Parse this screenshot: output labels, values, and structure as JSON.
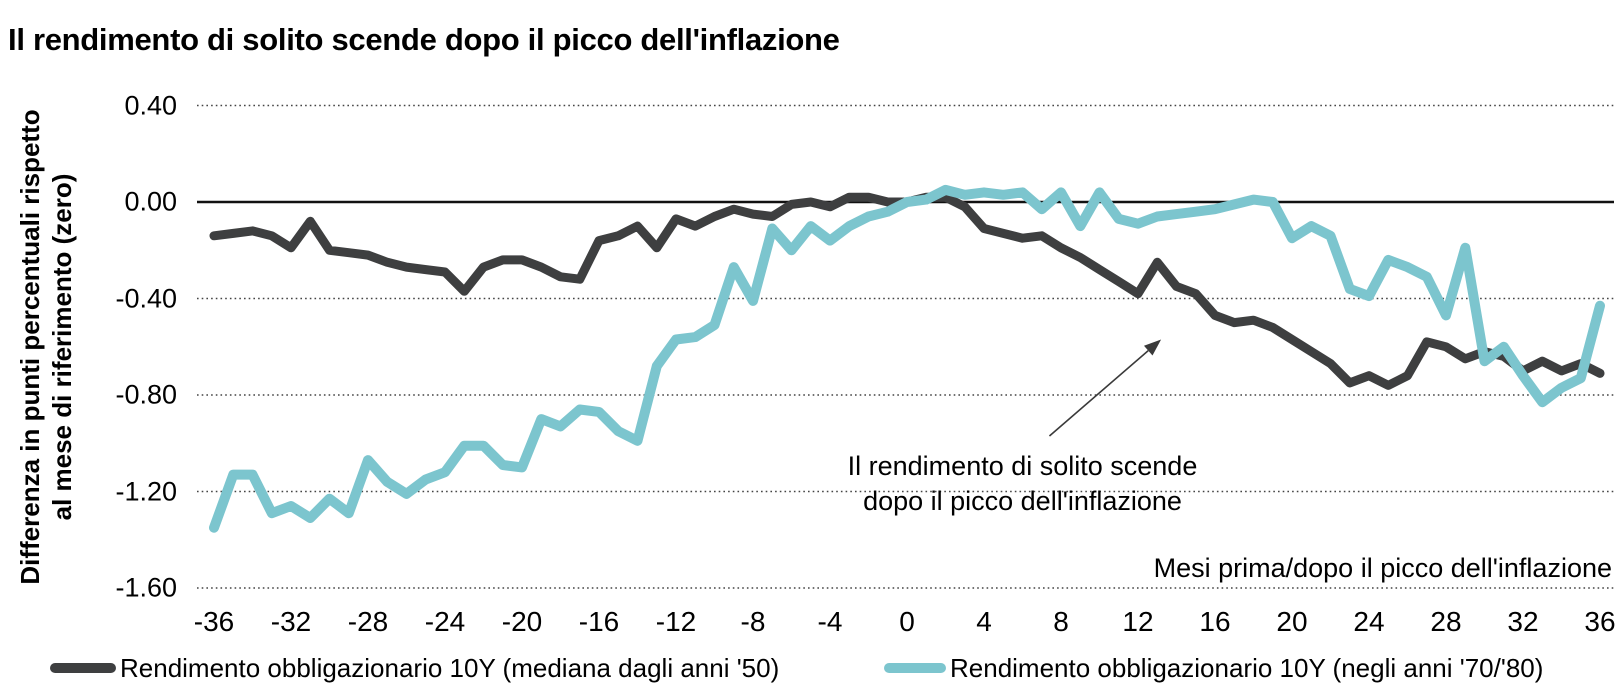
{
  "title": "Il rendimento di solito scende dopo il picco dell'inflazione",
  "colors": {
    "series_median_50s": "#3E3F40",
    "series_70s_80s": "#7CC5CE",
    "zero_axis_line": "#111111",
    "gridline": "#444444",
    "annotation_arrow": "#3a3a3a",
    "background": "#ffffff"
  },
  "chart_data": {
    "type": "line",
    "title": "Il rendimento di solito scende dopo il picco dell'inflazione",
    "xlabel": "Mesi prima/dopo il picco dell'inflazione",
    "ylabel": "Differenza in punti percentuali rispetto al mese di riferimento (zero)",
    "ylabel_lines": [
      "Differenza in punti percentuali rispetto",
      "al mese di riferimento (zero)"
    ],
    "xlim": [
      -36,
      36
    ],
    "ylim": [
      -1.6,
      0.4
    ],
    "grid": "horizontal-dotted",
    "legend_position": "bottom",
    "x_tick_labels": [
      "-36",
      "-32",
      "-28",
      "-24",
      "-20",
      "-16",
      "-12",
      "-8",
      "-4",
      "0",
      "4",
      "8",
      "12",
      "16",
      "20",
      "24",
      "28",
      "32",
      "36"
    ],
    "y_tick_labels": [
      "0.40",
      "0.00",
      "-0.40",
      "-0.80",
      "-1.20",
      "-1.60"
    ],
    "x": [
      -36,
      -35,
      -34,
      -33,
      -32,
      -31,
      -30,
      -29,
      -28,
      -27,
      -26,
      -25,
      -24,
      -23,
      -22,
      -21,
      -20,
      -19,
      -18,
      -17,
      -16,
      -15,
      -14,
      -13,
      -12,
      -11,
      -10,
      -9,
      -8,
      -7,
      -6,
      -5,
      -4,
      -3,
      -2,
      -1,
      0,
      1,
      2,
      3,
      4,
      5,
      6,
      7,
      8,
      9,
      10,
      11,
      12,
      13,
      14,
      15,
      16,
      17,
      18,
      19,
      20,
      21,
      22,
      23,
      24,
      25,
      26,
      27,
      28,
      29,
      30,
      31,
      32,
      33,
      34,
      35,
      36
    ],
    "series": [
      {
        "name": "Rendimento obbligazionario 10Y (mediana dagli anni '50)",
        "color": "#3E3F40",
        "values": [
          -0.14,
          -0.13,
          -0.12,
          -0.14,
          -0.19,
          -0.08,
          -0.2,
          -0.21,
          -0.22,
          -0.25,
          -0.27,
          -0.28,
          -0.29,
          -0.37,
          -0.27,
          -0.24,
          -0.24,
          -0.27,
          -0.31,
          -0.32,
          -0.16,
          -0.14,
          -0.1,
          -0.19,
          -0.07,
          -0.1,
          -0.06,
          -0.03,
          -0.05,
          -0.06,
          -0.01,
          0.0,
          -0.02,
          0.02,
          0.02,
          0.0,
          0.0,
          0.02,
          0.02,
          -0.02,
          -0.11,
          -0.13,
          -0.15,
          -0.14,
          -0.19,
          -0.23,
          -0.28,
          -0.33,
          -0.38,
          -0.25,
          -0.35,
          -0.38,
          -0.47,
          -0.5,
          -0.49,
          -0.52,
          -0.57,
          -0.62,
          -0.67,
          -0.75,
          -0.72,
          -0.76,
          -0.72,
          -0.58,
          -0.6,
          -0.65,
          -0.62,
          -0.64,
          -0.7,
          -0.66,
          -0.7,
          -0.67,
          -0.71
        ]
      },
      {
        "name": "Rendimento obbligazionario 10Y (negli anni '70/'80)",
        "color": "#7CC5CE",
        "values": [
          -1.35,
          -1.13,
          -1.13,
          -1.29,
          -1.26,
          -1.31,
          -1.23,
          -1.29,
          -1.07,
          -1.16,
          -1.21,
          -1.15,
          -1.12,
          -1.01,
          -1.01,
          -1.09,
          -1.1,
          -0.9,
          -0.93,
          -0.86,
          -0.87,
          -0.95,
          -0.99,
          -0.68,
          -0.57,
          -0.56,
          -0.51,
          -0.27,
          -0.41,
          -0.11,
          -0.2,
          -0.1,
          -0.16,
          -0.1,
          -0.06,
          -0.04,
          0.0,
          0.01,
          0.05,
          0.03,
          0.04,
          0.03,
          0.04,
          -0.03,
          0.04,
          -0.1,
          0.04,
          -0.07,
          -0.09,
          -0.06,
          -0.05,
          -0.04,
          -0.03,
          -0.01,
          0.01,
          0.0,
          -0.15,
          -0.1,
          -0.14,
          -0.36,
          -0.39,
          -0.24,
          -0.27,
          -0.31,
          -0.47,
          -0.19,
          -0.66,
          -0.6,
          -0.72,
          -0.83,
          -0.77,
          -0.73,
          -0.43
        ]
      }
    ],
    "annotation": {
      "lines": [
        "Il rendimento di solito scende",
        "dopo il picco dell'inflazione"
      ],
      "arrow": {
        "from_x": 7.4,
        "from_y": -0.97,
        "to_x": 13.2,
        "to_y": -0.57
      }
    }
  }
}
